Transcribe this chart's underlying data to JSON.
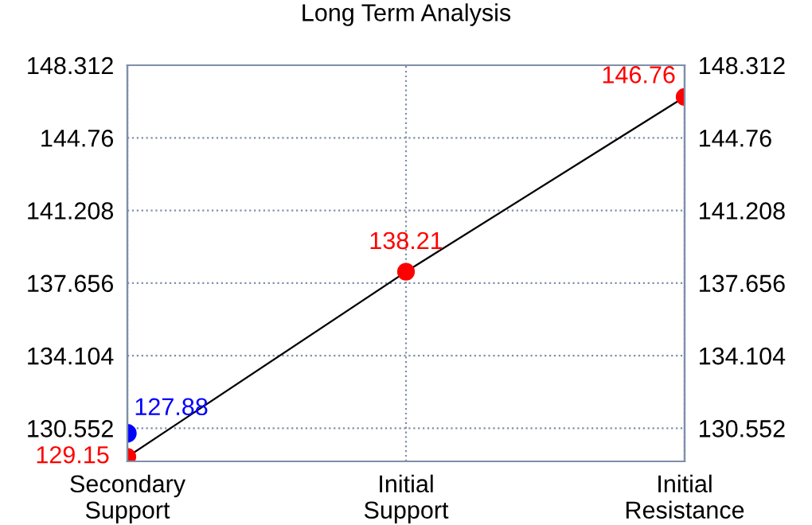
{
  "chart_data": {
    "type": "line",
    "title": "Long Term Analysis",
    "categories": [
      "Secondary\nSupport",
      "Initial\nSupport",
      "Initial\nResistance"
    ],
    "series": [
      {
        "color": "#ff0000",
        "values": [
          129.15,
          138.21,
          146.76
        ],
        "marker": "circle",
        "data_labels": true
      },
      {
        "type": "scatter",
        "color": "#0000ff",
        "x": [
          "Secondary\nSupport"
        ],
        "values": [
          130.3
        ],
        "marker": "circle"
      }
    ],
    "annotations": [
      {
        "text": "127.88",
        "x": "Secondary\nSupport",
        "y": 130.3
      }
    ],
    "ylim": [
      128.93,
      148.312
    ],
    "yticks": [
      130.552,
      134.104,
      137.656,
      141.208,
      144.76,
      148.312
    ],
    "y2lim": [
      128.93,
      148.312
    ],
    "y2ticks": [
      130.552,
      134.104,
      137.656,
      141.208,
      144.76,
      148.312
    ],
    "grid": true
  }
}
